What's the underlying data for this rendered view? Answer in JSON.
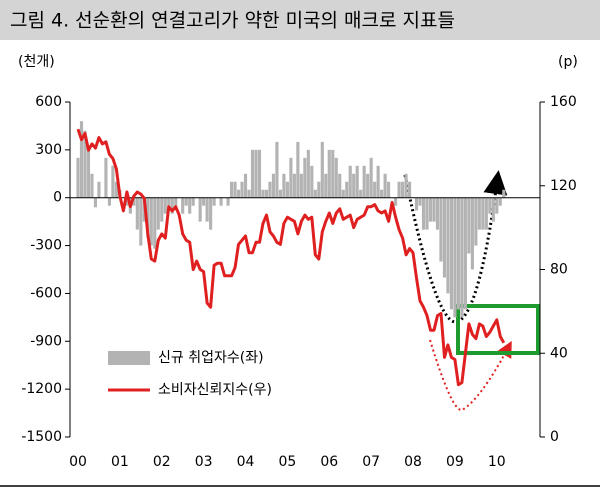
{
  "chart_data": {
    "type": "combo",
    "title": "그림 4. 선순환의 연결고리가 약한 미국의 매크로 지표들",
    "y_label": "(천개)",
    "y2_label": "(p)",
    "categories": [
      "00",
      null,
      null,
      null,
      null,
      null,
      null,
      null,
      null,
      null,
      null,
      null,
      "01",
      null,
      null,
      null,
      null,
      null,
      null,
      null,
      null,
      null,
      null,
      null,
      "02",
      null,
      null,
      null,
      null,
      null,
      null,
      null,
      null,
      null,
      null,
      null,
      "03",
      null,
      null,
      null,
      null,
      null,
      null,
      null,
      null,
      null,
      null,
      null,
      "04",
      null,
      null,
      null,
      null,
      null,
      null,
      null,
      null,
      null,
      null,
      null,
      "05",
      null,
      null,
      null,
      null,
      null,
      null,
      null,
      null,
      null,
      null,
      null,
      "06",
      null,
      null,
      null,
      null,
      null,
      null,
      null,
      null,
      null,
      null,
      null,
      "07",
      null,
      null,
      null,
      null,
      null,
      null,
      null,
      null,
      null,
      null,
      null,
      "08",
      null,
      null,
      null,
      null,
      null,
      null,
      null,
      null,
      null,
      null,
      null,
      "09",
      null,
      null,
      null,
      null,
      null,
      null,
      null,
      null,
      null,
      null,
      null,
      "10",
      null,
      null
    ],
    "ylim": [
      -1500,
      600
    ],
    "yticks": [
      -1500,
      -1200,
      -900,
      -600,
      -300,
      0,
      300,
      600
    ],
    "y2lim": [
      0,
      160
    ],
    "y2ticks": [
      0,
      40,
      80,
      120,
      160
    ],
    "series": [
      {
        "name": "신규 취업자수(좌)",
        "type": "bar",
        "color": "#b3b3b3",
        "values": [
          250,
          480,
          420,
          300,
          150,
          -60,
          100,
          0,
          250,
          -50,
          200,
          100,
          50,
          0,
          -50,
          -100,
          -50,
          -200,
          -300,
          -150,
          -250,
          -300,
          -320,
          -200,
          -150,
          -100,
          -50,
          -100,
          -50,
          0,
          -100,
          -50,
          -100,
          -50,
          0,
          -150,
          -50,
          -150,
          -200,
          -50,
          0,
          -50,
          0,
          -50,
          100,
          100,
          50,
          100,
          150,
          50,
          300,
          300,
          300,
          50,
          50,
          100,
          150,
          350,
          50,
          150,
          100,
          250,
          150,
          350,
          150,
          250,
          300,
          200,
          50,
          100,
          350,
          150,
          300,
          300,
          250,
          150,
          50,
          100,
          200,
          150,
          200,
          50,
          200,
          150,
          250,
          100,
          200,
          50,
          150,
          100,
          0,
          -50,
          100,
          100,
          150,
          100,
          0,
          -80,
          -50,
          -200,
          -200,
          -150,
          -150,
          -200,
          -400,
          -500,
          -600,
          -700,
          -750,
          -700,
          -750,
          -700,
          -350,
          -450,
          -300,
          -200,
          -200,
          -200,
          -100,
          -150,
          -100,
          -50,
          50
        ]
      },
      {
        "name": "소비자신뢰지수(우)",
        "type": "line",
        "axis": "y2",
        "color": "#e02020",
        "values": [
          147,
          142,
          145,
          137,
          140,
          138,
          143,
          140,
          141,
          135,
          133,
          128,
          115,
          108,
          117,
          110,
          115,
          117,
          116,
          114,
          97,
          85,
          84,
          94,
          97,
          95,
          110,
          108,
          110,
          106,
          97,
          94,
          93,
          80,
          84,
          80,
          79,
          64,
          62,
          82,
          83,
          83,
          77,
          77,
          77,
          81,
          92,
          94,
          96,
          88,
          88,
          93,
          93,
          102,
          106,
          98,
          96,
          93,
          92,
          102,
          105,
          104,
          103,
          97,
          103,
          106,
          104,
          105,
          87,
          85,
          98,
          103,
          107,
          102,
          107,
          109,
          104,
          105,
          106,
          100,
          104,
          105,
          106,
          110,
          110,
          111,
          108,
          107,
          108,
          103,
          112,
          105,
          99,
          95,
          87,
          90,
          88,
          76,
          65,
          62,
          58,
          51,
          51,
          58,
          59,
          38,
          44,
          38,
          37,
          25,
          26,
          40,
          54,
          49,
          47,
          54,
          53,
          48,
          50,
          53,
          56,
          48,
          45
        ]
      }
    ]
  }
}
